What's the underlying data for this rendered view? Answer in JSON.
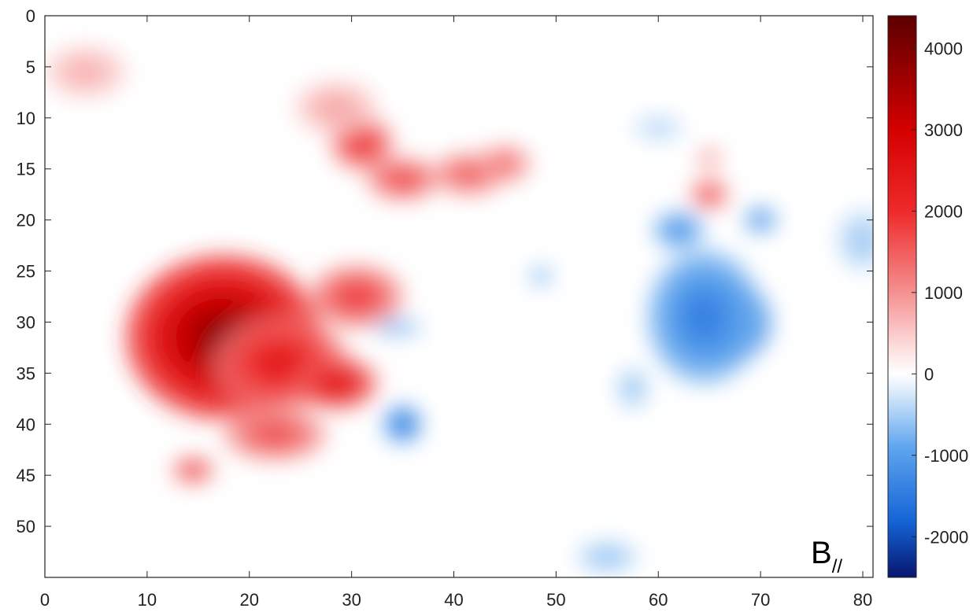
{
  "chart_data": {
    "type": "heatmap",
    "title": "",
    "xlabel": "",
    "ylabel": "",
    "panel_label": {
      "main": "B",
      "subscript": "//"
    },
    "xlim": [
      0,
      81
    ],
    "ylim": [
      0,
      55
    ],
    "y_axis_direction": "down",
    "x_ticks": [
      0,
      10,
      20,
      30,
      40,
      50,
      60,
      70,
      80
    ],
    "y_ticks": [
      0,
      5,
      10,
      15,
      20,
      25,
      30,
      35,
      40,
      45,
      50
    ],
    "colorbar": {
      "range": [
        -2500,
        4400
      ],
      "ticks": [
        4000,
        3000,
        2000,
        1000,
        0,
        -1000,
        -2000
      ],
      "colormap": [
        {
          "value": -2500,
          "color": "#08166e"
        },
        {
          "value": -1800,
          "color": "#1565d8"
        },
        {
          "value": -900,
          "color": "#5fa5ee"
        },
        {
          "value": -250,
          "color": "#d6e8fa"
        },
        {
          "value": 0,
          "color": "#ffffff"
        },
        {
          "value": 300,
          "color": "#fde0e0"
        },
        {
          "value": 1000,
          "color": "#f59090"
        },
        {
          "value": 2000,
          "color": "#ee2a2a"
        },
        {
          "value": 3000,
          "color": "#d50000"
        },
        {
          "value": 4400,
          "color": "#5c0000"
        }
      ]
    },
    "features": [
      {
        "x": 17.5,
        "y": 31.5,
        "rx": 9.5,
        "ry": 8.0,
        "value": 4000,
        "polarity": "positive"
      },
      {
        "x": 23.0,
        "y": 34.0,
        "rx": 6.5,
        "ry": 4.5,
        "value": 2600,
        "polarity": "positive"
      },
      {
        "x": 28.5,
        "y": 36.0,
        "rx": 4.0,
        "ry": 2.5,
        "value": 2800,
        "polarity": "positive"
      },
      {
        "x": 30.5,
        "y": 27.5,
        "rx": 4.5,
        "ry": 3.0,
        "value": 2000,
        "polarity": "positive"
      },
      {
        "x": 22.5,
        "y": 41.0,
        "rx": 5.0,
        "ry": 2.5,
        "value": 1800,
        "polarity": "positive"
      },
      {
        "x": 14.5,
        "y": 44.5,
        "rx": 2.0,
        "ry": 1.2,
        "value": 2200,
        "polarity": "positive"
      },
      {
        "x": 31.0,
        "y": 12.5,
        "rx": 3.0,
        "ry": 2.5,
        "value": 2200,
        "polarity": "positive"
      },
      {
        "x": 35.0,
        "y": 16.0,
        "rx": 3.5,
        "ry": 2.0,
        "value": 1900,
        "polarity": "positive"
      },
      {
        "x": 41.5,
        "y": 15.5,
        "rx": 3.5,
        "ry": 2.0,
        "value": 1700,
        "polarity": "positive"
      },
      {
        "x": 45.0,
        "y": 14.5,
        "rx": 2.5,
        "ry": 1.8,
        "value": 1500,
        "polarity": "positive"
      },
      {
        "x": 28.5,
        "y": 9.0,
        "rx": 4.0,
        "ry": 2.5,
        "value": 900,
        "polarity": "positive"
      },
      {
        "x": 4.0,
        "y": 5.5,
        "rx": 4.0,
        "ry": 2.5,
        "value": 800,
        "polarity": "positive"
      },
      {
        "x": 65.0,
        "y": 17.5,
        "rx": 1.8,
        "ry": 1.4,
        "value": 2000,
        "polarity": "positive"
      },
      {
        "x": 65.0,
        "y": 14.0,
        "rx": 1.0,
        "ry": 1.0,
        "value": 1400,
        "polarity": "positive"
      },
      {
        "x": 67.0,
        "y": 30.0,
        "rx": 4.0,
        "ry": 4.0,
        "value": -2300,
        "polarity": "negative"
      },
      {
        "x": 64.5,
        "y": 29.5,
        "rx": 5.5,
        "ry": 6.5,
        "value": -1500,
        "polarity": "negative"
      },
      {
        "x": 62.0,
        "y": 21.0,
        "rx": 2.5,
        "ry": 1.8,
        "value": -1300,
        "polarity": "negative"
      },
      {
        "x": 70.0,
        "y": 20.0,
        "rx": 1.5,
        "ry": 1.2,
        "value": -1500,
        "polarity": "negative"
      },
      {
        "x": 35.0,
        "y": 40.0,
        "rx": 1.8,
        "ry": 1.8,
        "value": -1800,
        "polarity": "negative"
      },
      {
        "x": 34.5,
        "y": 30.5,
        "rx": 2.5,
        "ry": 0.8,
        "value": -900,
        "polarity": "negative"
      },
      {
        "x": 48.5,
        "y": 25.5,
        "rx": 1.0,
        "ry": 0.8,
        "value": -1200,
        "polarity": "negative"
      },
      {
        "x": 55.0,
        "y": 53.0,
        "rx": 3.0,
        "ry": 1.5,
        "value": -700,
        "polarity": "negative"
      },
      {
        "x": 80.0,
        "y": 22.0,
        "rx": 2.5,
        "ry": 3.0,
        "value": -600,
        "polarity": "negative"
      },
      {
        "x": 57.5,
        "y": 36.5,
        "rx": 1.5,
        "ry": 2.0,
        "value": -700,
        "polarity": "negative"
      },
      {
        "x": 60.0,
        "y": 11.0,
        "rx": 2.5,
        "ry": 1.2,
        "value": -500,
        "polarity": "negative"
      }
    ]
  }
}
